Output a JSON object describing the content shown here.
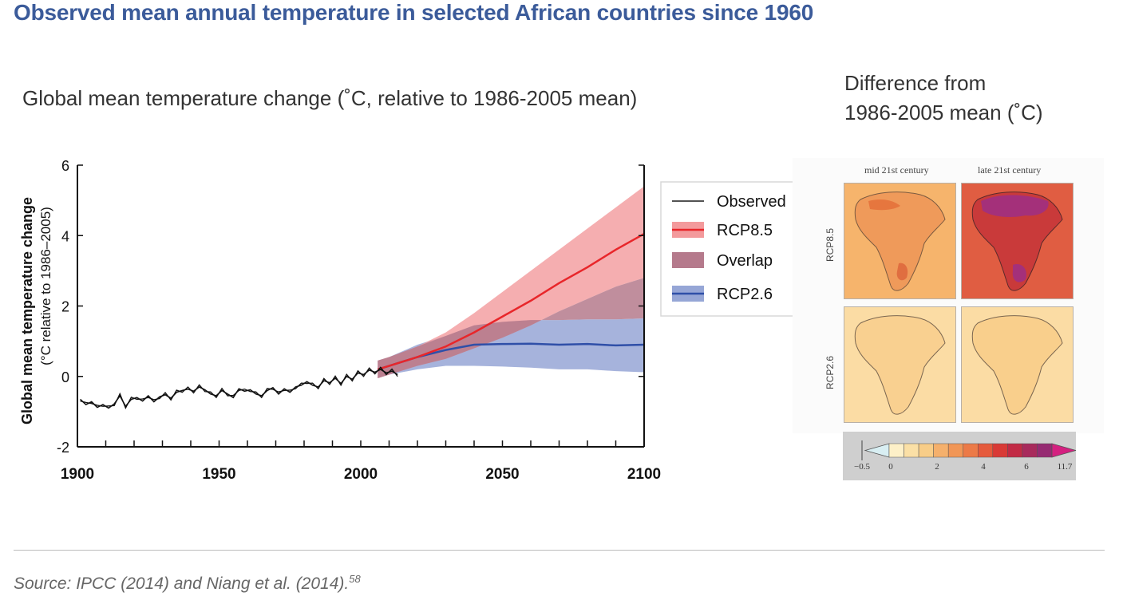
{
  "page": {
    "title": "Observed mean annual temperature in selected African countries since 1960",
    "source": "Source: IPCC (2014) and Niang et al. (2014).",
    "source_sup": "58"
  },
  "chart_heading": "Global mean temperature change (˚C, relative to 1986-2005 mean)",
  "map_heading": {
    "line1": "Difference from",
    "line2": "1986-2005 mean (˚C)"
  },
  "maps": {
    "col_labels": [
      "mid 21st century",
      "late 21st century"
    ],
    "row_labels": [
      "RCP8.5",
      "RCP2.6"
    ]
  },
  "colorbar": {
    "ticks": [
      "−0.5",
      "0",
      "2",
      "4",
      "6",
      "11.7"
    ],
    "colors": [
      "#d8eef2",
      "#fdf0c8",
      "#fbe0a6",
      "#f8cd88",
      "#f5b06c",
      "#f19656",
      "#ec7a47",
      "#e55a3c",
      "#d93a36",
      "#c22a45",
      "#a82a5c",
      "#962a72",
      "#d42080"
    ]
  },
  "legend": {
    "items": [
      {
        "label": "Observed",
        "kind": "line",
        "color": "#1a1a1a"
      },
      {
        "label": "RCP8.5",
        "kind": "line-band",
        "color": "#e8262a",
        "band": "#f39a9c"
      },
      {
        "label": "Overlap",
        "kind": "band",
        "band": "#b57a8c"
      },
      {
        "label": "RCP2.6",
        "kind": "line-band",
        "color": "#2f4fa8",
        "band": "#96a6d6"
      }
    ]
  },
  "chart_data": {
    "type": "line",
    "xlabel": "",
    "ylabel_line1": "Global mean temperature change",
    "ylabel_line2": "(°C relative to 1986–2005)",
    "xlim": [
      1900,
      2100
    ],
    "ylim": [
      -2,
      6
    ],
    "xticks": [
      1900,
      1950,
      2000,
      2050,
      2100
    ],
    "yticks": [
      -2,
      0,
      2,
      4,
      6
    ],
    "colors": {
      "observed": "#111111",
      "rcp85": "#e8262a",
      "rcp85_band": "#f39a9c",
      "rcp26": "#2f4fa8",
      "rcp26_band": "#96a6d6",
      "overlap": "#b57a8c"
    },
    "series": [
      {
        "name": "Observed",
        "x": [
          1901,
          1903,
          1905,
          1907,
          1909,
          1911,
          1913,
          1915,
          1917,
          1919,
          1921,
          1923,
          1925,
          1927,
          1929,
          1931,
          1933,
          1935,
          1937,
          1939,
          1941,
          1943,
          1945,
          1947,
          1949,
          1951,
          1953,
          1955,
          1957,
          1959,
          1961,
          1963,
          1965,
          1967,
          1969,
          1971,
          1973,
          1975,
          1977,
          1979,
          1981,
          1983,
          1985,
          1987,
          1989,
          1991,
          1993,
          1995,
          1997,
          1999,
          2001,
          2003,
          2005,
          2007,
          2009,
          2011,
          2013
        ],
        "y": [
          -0.65,
          -0.8,
          -0.72,
          -0.88,
          -0.8,
          -0.9,
          -0.78,
          -0.55,
          -0.85,
          -0.65,
          -0.6,
          -0.7,
          -0.55,
          -0.72,
          -0.58,
          -0.52,
          -0.62,
          -0.45,
          -0.4,
          -0.36,
          -0.42,
          -0.3,
          -0.38,
          -0.5,
          -0.55,
          -0.4,
          -0.5,
          -0.6,
          -0.35,
          -0.42,
          -0.38,
          -0.5,
          -0.55,
          -0.4,
          -0.32,
          -0.5,
          -0.35,
          -0.45,
          -0.3,
          -0.25,
          -0.15,
          -0.25,
          -0.3,
          -0.12,
          -0.18,
          -0.05,
          -0.2,
          0.0,
          -0.08,
          0.1,
          0.05,
          0.18,
          0.12,
          0.2,
          0.1,
          0.15,
          0.05
        ]
      },
      {
        "name": "RCP8.5",
        "x": [
          2006,
          2010,
          2020,
          2030,
          2040,
          2050,
          2060,
          2070,
          2080,
          2090,
          2100
        ],
        "y": [
          0.2,
          0.3,
          0.55,
          0.85,
          1.25,
          1.7,
          2.15,
          2.65,
          3.1,
          3.6,
          4.05
        ],
        "lower": [
          -0.05,
          0.05,
          0.3,
          0.5,
          0.8,
          1.1,
          1.45,
          1.85,
          2.2,
          2.55,
          2.8
        ],
        "upper": [
          0.45,
          0.55,
          0.85,
          1.25,
          1.8,
          2.4,
          3.0,
          3.6,
          4.2,
          4.8,
          5.4
        ]
      },
      {
        "name": "RCP2.6",
        "x": [
          2006,
          2010,
          2020,
          2030,
          2040,
          2050,
          2060,
          2070,
          2080,
          2090,
          2100
        ],
        "y": [
          0.2,
          0.3,
          0.55,
          0.75,
          0.9,
          0.92,
          0.93,
          0.9,
          0.92,
          0.88,
          0.9
        ],
        "lower": [
          -0.05,
          0.05,
          0.2,
          0.3,
          0.3,
          0.28,
          0.25,
          0.2,
          0.2,
          0.15,
          0.12
        ],
        "upper": [
          0.45,
          0.55,
          0.9,
          1.15,
          1.45,
          1.55,
          1.6,
          1.6,
          1.62,
          1.62,
          1.65
        ]
      }
    ]
  }
}
